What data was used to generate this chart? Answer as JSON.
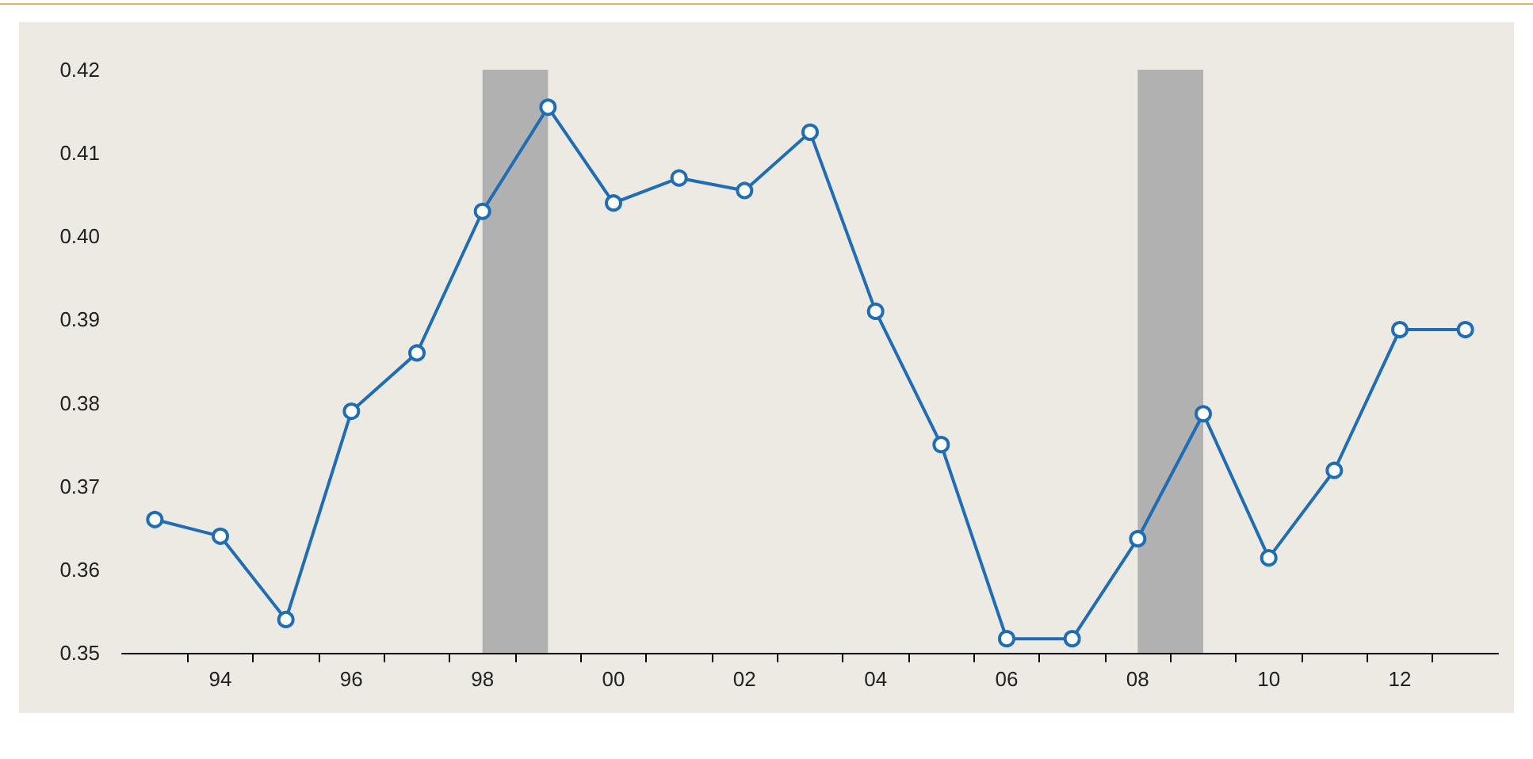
{
  "chart_data": {
    "type": "line",
    "x": [
      1993,
      1994,
      1995,
      1996,
      1997,
      1998,
      1999,
      2000,
      2001,
      2002,
      2003,
      2004,
      2005,
      2006,
      2007,
      2008,
      2009,
      2010,
      2011,
      2012,
      2013
    ],
    "series": [
      {
        "color": "#1f6db4",
        "values": [
          0.366,
          0.364,
          0.354,
          0.379,
          0.386,
          0.403,
          0.4155,
          0.404,
          0.407,
          0.4055,
          0.4125,
          0.391,
          0.375,
          0.3517,
          0.3517,
          0.3637,
          0.3787,
          0.3614,
          0.3719,
          0.3888,
          0.3888
        ]
      }
    ],
    "xlim": [
      1992.5,
      2013.5
    ],
    "xticks": [
      {
        "value": 1993.5,
        "label": null
      },
      {
        "value": 1994,
        "label": "94"
      },
      {
        "value": 1994.5,
        "label": null
      },
      {
        "value": 1995.5,
        "label": null
      },
      {
        "value": 1996,
        "label": "96"
      },
      {
        "value": 1996.5,
        "label": null
      },
      {
        "value": 1997.5,
        "label": null
      },
      {
        "value": 1998,
        "label": "98"
      },
      {
        "value": 1998.5,
        "label": null
      },
      {
        "value": 1999.5,
        "label": null
      },
      {
        "value": 2000,
        "label": "00"
      },
      {
        "value": 2000.5,
        "label": null
      },
      {
        "value": 2001.5,
        "label": null
      },
      {
        "value": 2002,
        "label": "02"
      },
      {
        "value": 2002.5,
        "label": null
      },
      {
        "value": 2003.5,
        "label": null
      },
      {
        "value": 2004,
        "label": "04"
      },
      {
        "value": 2004.5,
        "label": null
      },
      {
        "value": 2005.5,
        "label": null
      },
      {
        "value": 2006,
        "label": "06"
      },
      {
        "value": 2006.5,
        "label": null
      },
      {
        "value": 2007.5,
        "label": null
      },
      {
        "value": 2008,
        "label": "08"
      },
      {
        "value": 2008.5,
        "label": null
      },
      {
        "value": 2009.5,
        "label": null
      },
      {
        "value": 2010,
        "label": "10"
      },
      {
        "value": 2010.5,
        "label": null
      },
      {
        "value": 2011.5,
        "label": null
      },
      {
        "value": 2012,
        "label": "12"
      },
      {
        "value": 2012.5,
        "label": null
      }
    ],
    "ylim": [
      0.35,
      0.42
    ],
    "yticks": [
      0.35,
      0.36,
      0.37,
      0.38,
      0.39,
      {
        "value": 0.4,
        "label": "0.40"
      },
      0.41,
      0.42
    ],
    "bands": [
      {
        "axis": "x",
        "from": 1998,
        "to": 1999,
        "color": "#b1b1b1"
      },
      {
        "axis": "x",
        "from": 2008,
        "to": 2009,
        "color": "#b1b1b1"
      }
    ],
    "marker": "circle",
    "grid": false
  }
}
